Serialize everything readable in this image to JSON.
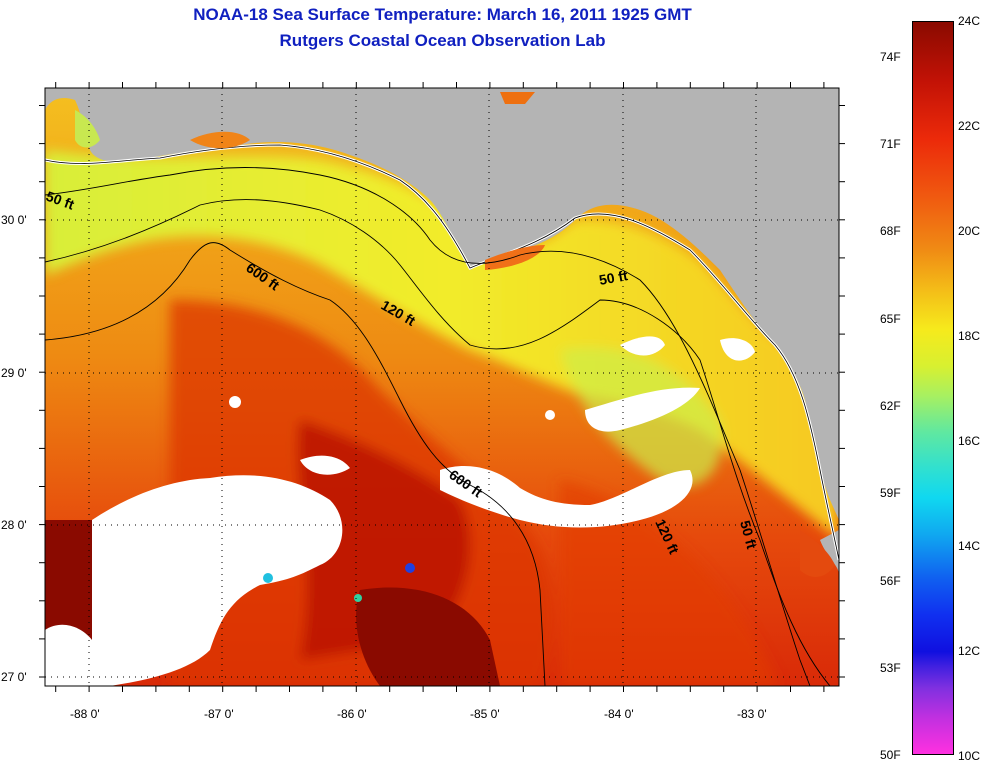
{
  "header": {
    "title": "NOAA-18 Sea Surface Temperature:  March 16, 2011 1925 GMT",
    "subtitle": "Rutgers Coastal Ocean Observation Lab"
  },
  "map": {
    "lat_labels": [
      "30 0'",
      "29 0'",
      "28 0'",
      "27 0'"
    ],
    "lon_labels": [
      "-88 0'",
      "-87 0'",
      "-86 0'",
      "-85 0'",
      "-84 0'",
      "-83 0'"
    ],
    "contours": [
      "50 ft",
      "600 ft",
      "120 ft",
      "50 ft",
      "600 ft",
      "120 ft",
      "50 ft"
    ],
    "colors": {
      "land": "#b4b4b4",
      "cloud": "#ffffff",
      "warm_core": "#8a0a00",
      "shelf": "#f2e830"
    }
  },
  "colorbar": {
    "fahrenheit_labels": [
      "74F",
      "71F",
      "68F",
      "65F",
      "62F",
      "59F",
      "56F",
      "53F",
      "50F"
    ],
    "celsius_labels": [
      "24C",
      "22C",
      "20C",
      "18C",
      "16C",
      "14C",
      "12C",
      "10C"
    ],
    "range_c": [
      10,
      24
    ]
  }
}
